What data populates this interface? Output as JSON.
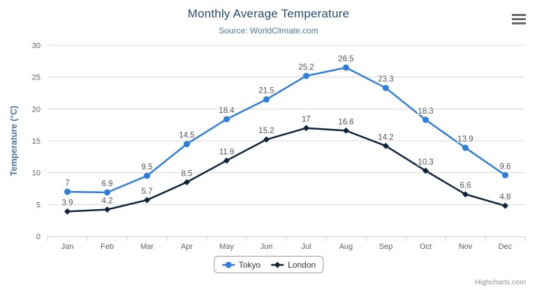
{
  "header": {
    "title": "Monthly Average Temperature",
    "subtitle": "Source: WorldClimate.com"
  },
  "menu": {
    "icon": "hamburger-menu-icon"
  },
  "credits": {
    "label": "Highcharts.com"
  },
  "colors": {
    "title": "#274b6d",
    "subtitle": "#4d759e",
    "axis_title": "#4d759e",
    "tick_label": "#606060",
    "data_label": "#555555",
    "grid_line": "#d8d8d8",
    "axis_line": "#c0d0e0",
    "legend_border": "#999999",
    "legend_text": "#333333",
    "credits_text": "#909090",
    "menu_icon": "#666666"
  },
  "chart_data": {
    "type": "line",
    "title": "Monthly Average Temperature",
    "subtitle": "Source: WorldClimate.com",
    "categories": [
      "Jan",
      "Feb",
      "Mar",
      "Apr",
      "May",
      "Jun",
      "Jul",
      "Aug",
      "Sep",
      "Oct",
      "Nov",
      "Dec"
    ],
    "series": [
      {
        "name": "Tokyo",
        "color": "#2f7ed8",
        "marker": "circle",
        "values": [
          7,
          6.9,
          9.5,
          14.5,
          18.4,
          21.5,
          25.2,
          26.5,
          23.3,
          18.3,
          13.9,
          9.6
        ]
      },
      {
        "name": "London",
        "color": "#0d233a",
        "marker": "diamond",
        "values": [
          3.9,
          4.2,
          5.7,
          8.5,
          11.9,
          15.2,
          17,
          16.6,
          14.2,
          10.3,
          6.6,
          4.8
        ]
      }
    ],
    "xlabel": "",
    "ylabel": "Temperature (°C)",
    "ylim": [
      0,
      30
    ],
    "ytick_interval": 5,
    "grid": true,
    "data_labels": true,
    "legend_position": "bottom"
  }
}
